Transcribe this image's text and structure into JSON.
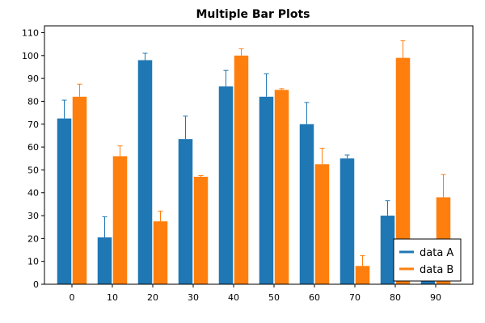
{
  "chart_data": {
    "type": "bar",
    "title": "Multiple Bar Plots",
    "xlabel": "",
    "ylabel": "",
    "x": [
      0,
      10,
      20,
      30,
      40,
      50,
      60,
      70,
      80,
      90
    ],
    "x_tick_labels": [
      "0",
      "10",
      "20",
      "30",
      "40",
      "50",
      "60",
      "70",
      "80",
      "90"
    ],
    "y_ticks": [
      0,
      10,
      20,
      30,
      40,
      50,
      60,
      70,
      80,
      90,
      100,
      110
    ],
    "y_tick_labels": [
      "0",
      "10",
      "20",
      "30",
      "40",
      "50",
      "60",
      "70",
      "80",
      "90",
      "100",
      "110"
    ],
    "ylim": [
      0,
      113
    ],
    "grid": false,
    "legend_position": "bottom-right",
    "series": [
      {
        "name": "data A",
        "color": "#1f77b4",
        "values": [
          72.5,
          20.5,
          98,
          63.5,
          86.5,
          82,
          70,
          55,
          30,
          7
        ],
        "errors": [
          8,
          9,
          3,
          10,
          7,
          10,
          9.5,
          1.5,
          6.5,
          0
        ]
      },
      {
        "name": "data B",
        "color": "#ff7f0e",
        "values": [
          82,
          56,
          27.5,
          47,
          100,
          85,
          52.5,
          8,
          99,
          38
        ],
        "errors": [
          5.5,
          4.5,
          4.5,
          0.5,
          3,
          0.5,
          7,
          4.5,
          7.5,
          10
        ]
      }
    ]
  }
}
